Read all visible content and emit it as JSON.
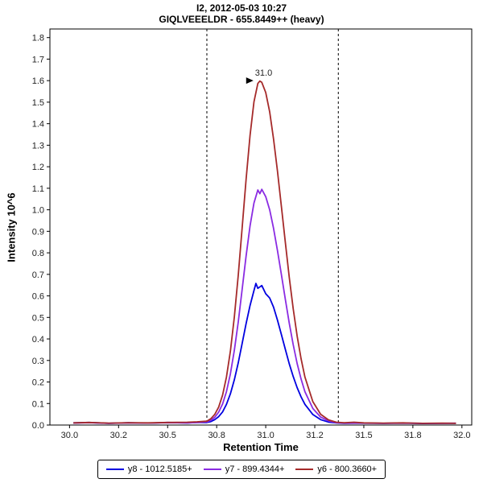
{
  "title": {
    "line1": "I2, 2012-05-03 10:27",
    "line2": "GIQLVEEELDR - 655.8449++ (heavy)"
  },
  "chart_data": {
    "type": "line",
    "title": "I2, 2012-05-03 10:27",
    "subtitle": "GIQLVEEELDR - 655.8449++ (heavy)",
    "xlabel": "Retention Time",
    "ylabel": "Intensity 10^6",
    "xlim": [
      29.9,
      32.05
    ],
    "ylim": [
      0,
      1.84
    ],
    "grid": false,
    "legend_position": "bottom",
    "x_ticks": [
      [
        30.0,
        "30.0"
      ],
      [
        30.25,
        "30.2"
      ],
      [
        30.5,
        "30.5"
      ],
      [
        30.75,
        "30.8"
      ],
      [
        31.0,
        "31.0"
      ],
      [
        31.25,
        "31.2"
      ],
      [
        31.5,
        "31.5"
      ],
      [
        31.75,
        "31.8"
      ],
      [
        32.0,
        "32.0"
      ]
    ],
    "y_ticks": [
      [
        0.0,
        "0.0"
      ],
      [
        0.1,
        "0.1"
      ],
      [
        0.2,
        "0.2"
      ],
      [
        0.3,
        "0.3"
      ],
      [
        0.4,
        "0.4"
      ],
      [
        0.5,
        "0.5"
      ],
      [
        0.6,
        "0.6"
      ],
      [
        0.7,
        "0.7"
      ],
      [
        0.8,
        "0.8"
      ],
      [
        0.9,
        "0.9"
      ],
      [
        1.0,
        "1.0"
      ],
      [
        1.1,
        "1.1"
      ],
      [
        1.2,
        "1.2"
      ],
      [
        1.3,
        "1.3"
      ],
      [
        1.4,
        "1.4"
      ],
      [
        1.5,
        "1.5"
      ],
      [
        1.6,
        "1.6"
      ],
      [
        1.7,
        "1.7"
      ],
      [
        1.8,
        "1.8"
      ]
    ],
    "integration_boundaries": [
      30.7,
      31.37
    ],
    "peak_annotation": {
      "label": "31.0",
      "x": 30.97,
      "y": 1.6,
      "color": "#cc0000"
    },
    "series": [
      {
        "name": "y8 - 1012.5185+",
        "color": "#0000e0",
        "points": [
          [
            30.02,
            0.01
          ],
          [
            30.1,
            0.012
          ],
          [
            30.2,
            0.008
          ],
          [
            30.3,
            0.011
          ],
          [
            30.4,
            0.009
          ],
          [
            30.5,
            0.012
          ],
          [
            30.6,
            0.01
          ],
          [
            30.65,
            0.012
          ],
          [
            30.7,
            0.012
          ],
          [
            30.72,
            0.016
          ],
          [
            30.74,
            0.025
          ],
          [
            30.76,
            0.039
          ],
          [
            30.78,
            0.061
          ],
          [
            30.8,
            0.096
          ],
          [
            30.82,
            0.145
          ],
          [
            30.84,
            0.21
          ],
          [
            30.86,
            0.29
          ],
          [
            30.88,
            0.379
          ],
          [
            30.9,
            0.471
          ],
          [
            30.92,
            0.555
          ],
          [
            30.94,
            0.625
          ],
          [
            30.95,
            0.658
          ],
          [
            30.96,
            0.635
          ],
          [
            30.98,
            0.648
          ],
          [
            31.0,
            0.61
          ],
          [
            31.02,
            0.59
          ],
          [
            31.04,
            0.548
          ],
          [
            31.06,
            0.487
          ],
          [
            31.08,
            0.42
          ],
          [
            31.1,
            0.351
          ],
          [
            31.12,
            0.285
          ],
          [
            31.14,
            0.226
          ],
          [
            31.16,
            0.174
          ],
          [
            31.18,
            0.131
          ],
          [
            31.2,
            0.096
          ],
          [
            31.24,
            0.049
          ],
          [
            31.28,
            0.025
          ],
          [
            31.32,
            0.014
          ],
          [
            31.36,
            0.01
          ],
          [
            31.4,
            0.008
          ],
          [
            31.5,
            0.009
          ],
          [
            31.6,
            0.008
          ],
          [
            31.7,
            0.009
          ],
          [
            31.8,
            0.007
          ],
          [
            31.9,
            0.008
          ],
          [
            31.97,
            0.008
          ]
        ]
      },
      {
        "name": "y7 - 899.4344+",
        "color": "#8a2be2",
        "points": [
          [
            30.02,
            0.009
          ],
          [
            30.1,
            0.011
          ],
          [
            30.2,
            0.008
          ],
          [
            30.3,
            0.01
          ],
          [
            30.4,
            0.009
          ],
          [
            30.5,
            0.011
          ],
          [
            30.6,
            0.01
          ],
          [
            30.65,
            0.012
          ],
          [
            30.7,
            0.015
          ],
          [
            30.72,
            0.022
          ],
          [
            30.74,
            0.036
          ],
          [
            30.76,
            0.06
          ],
          [
            30.78,
            0.098
          ],
          [
            30.8,
            0.155
          ],
          [
            30.82,
            0.238
          ],
          [
            30.84,
            0.347
          ],
          [
            30.86,
            0.48
          ],
          [
            30.88,
            0.63
          ],
          [
            30.9,
            0.785
          ],
          [
            30.92,
            0.925
          ],
          [
            30.94,
            1.032
          ],
          [
            30.96,
            1.092
          ],
          [
            30.97,
            1.075
          ],
          [
            30.98,
            1.095
          ],
          [
            31.0,
            1.061
          ],
          [
            31.02,
            1.0
          ],
          [
            31.04,
            0.914
          ],
          [
            31.06,
            0.81
          ],
          [
            31.08,
            0.698
          ],
          [
            31.1,
            0.583
          ],
          [
            31.12,
            0.474
          ],
          [
            31.14,
            0.374
          ],
          [
            31.16,
            0.286
          ],
          [
            31.18,
            0.214
          ],
          [
            31.2,
            0.155
          ],
          [
            31.24,
            0.077
          ],
          [
            31.28,
            0.037
          ],
          [
            31.32,
            0.019
          ],
          [
            31.36,
            0.011
          ],
          [
            31.4,
            0.009
          ],
          [
            31.5,
            0.009
          ],
          [
            31.6,
            0.008
          ],
          [
            31.7,
            0.009
          ],
          [
            31.8,
            0.008
          ],
          [
            31.9,
            0.008
          ],
          [
            31.97,
            0.009
          ]
        ]
      },
      {
        "name": "y6 - 800.3660+",
        "color": "#a52a2a",
        "points": [
          [
            30.02,
            0.01
          ],
          [
            30.1,
            0.012
          ],
          [
            30.2,
            0.009
          ],
          [
            30.3,
            0.011
          ],
          [
            30.4,
            0.01
          ],
          [
            30.5,
            0.012
          ],
          [
            30.6,
            0.013
          ],
          [
            30.65,
            0.015
          ],
          [
            30.7,
            0.018
          ],
          [
            30.72,
            0.029
          ],
          [
            30.74,
            0.049
          ],
          [
            30.76,
            0.083
          ],
          [
            30.78,
            0.139
          ],
          [
            30.8,
            0.223
          ],
          [
            30.82,
            0.343
          ],
          [
            30.84,
            0.502
          ],
          [
            30.86,
            0.697
          ],
          [
            30.88,
            0.916
          ],
          [
            30.9,
            1.141
          ],
          [
            30.92,
            1.345
          ],
          [
            30.94,
            1.502
          ],
          [
            30.96,
            1.587
          ],
          [
            30.97,
            1.598
          ],
          [
            30.98,
            1.592
          ],
          [
            31.0,
            1.545
          ],
          [
            31.02,
            1.455
          ],
          [
            31.04,
            1.329
          ],
          [
            31.06,
            1.179
          ],
          [
            31.08,
            1.014
          ],
          [
            31.1,
            0.847
          ],
          [
            31.12,
            0.687
          ],
          [
            31.14,
            0.541
          ],
          [
            31.16,
            0.414
          ],
          [
            31.18,
            0.308
          ],
          [
            31.2,
            0.223
          ],
          [
            31.24,
            0.109
          ],
          [
            31.28,
            0.05
          ],
          [
            31.32,
            0.024
          ],
          [
            31.36,
            0.013
          ],
          [
            31.4,
            0.011
          ],
          [
            31.45,
            0.013
          ],
          [
            31.5,
            0.01
          ],
          [
            31.6,
            0.009
          ],
          [
            31.7,
            0.01
          ],
          [
            31.8,
            0.008
          ],
          [
            31.9,
            0.009
          ],
          [
            31.97,
            0.008
          ]
        ]
      }
    ]
  }
}
